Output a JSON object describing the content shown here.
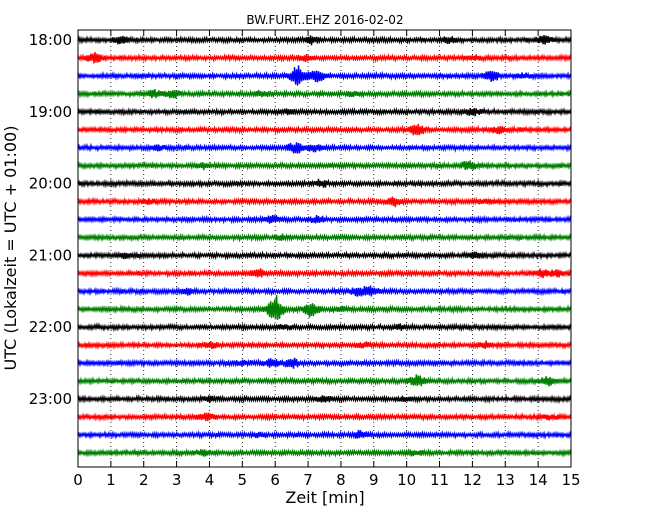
{
  "chart_data": {
    "type": "line",
    "title": "BW.FURT..EHZ 2016-02-02",
    "xlabel": "Zeit  [min]",
    "ylabel": "UTC (Lokalzeit = UTC + 01:00)",
    "xlim": [
      0,
      15
    ],
    "x_ticks": [
      "0",
      "1",
      "2",
      "3",
      "4",
      "5",
      "6",
      "7",
      "8",
      "9",
      "10",
      "11",
      "12",
      "13",
      "14",
      "15"
    ],
    "y_tick_labels": [
      "18:00",
      "19:00",
      "20:00",
      "21:00",
      "22:00",
      "23:00"
    ],
    "minutes_per_trace": 15,
    "vertical_grid": "dotted at every minute",
    "trace_colors": [
      "#000000",
      "#ff0000",
      "#0000ff",
      "#008000"
    ],
    "traces": [
      {
        "start": "18:00",
        "events": [
          {
            "min": 1.3,
            "amp": 0.5
          },
          {
            "min": 7.1,
            "amp": 0.6
          },
          {
            "min": 11.3,
            "amp": 0.45
          },
          {
            "min": 14.2,
            "amp": 0.6
          }
        ]
      },
      {
        "start": "18:15",
        "events": [
          {
            "min": 0.5,
            "amp": 0.8
          },
          {
            "min": 6.9,
            "amp": 0.35
          },
          {
            "min": 12.0,
            "amp": 0.3
          }
        ]
      },
      {
        "start": "18:30",
        "events": [
          {
            "min": 6.7,
            "amp": 1.6
          },
          {
            "min": 7.3,
            "amp": 1.0
          },
          {
            "min": 12.6,
            "amp": 0.8
          },
          {
            "min": 13.5,
            "amp": 0.3
          }
        ]
      },
      {
        "start": "18:45",
        "events": [
          {
            "min": 2.3,
            "amp": 0.5
          },
          {
            "min": 2.9,
            "amp": 0.6
          },
          {
            "min": 5.6,
            "amp": 0.4
          },
          {
            "min": 8.4,
            "amp": 0.3
          }
        ]
      },
      {
        "start": "19:00",
        "events": [
          {
            "min": 6.4,
            "amp": 0.35
          },
          {
            "min": 12.0,
            "amp": 0.5
          }
        ]
      },
      {
        "start": "19:15",
        "events": [
          {
            "min": 10.3,
            "amp": 0.9
          },
          {
            "min": 12.8,
            "amp": 0.5
          }
        ]
      },
      {
        "start": "19:30",
        "events": [
          {
            "min": 2.4,
            "amp": 0.4
          },
          {
            "min": 6.6,
            "amp": 0.8
          },
          {
            "min": 7.2,
            "amp": 0.5
          }
        ]
      },
      {
        "start": "19:45",
        "events": [
          {
            "min": 3.8,
            "amp": 0.4
          },
          {
            "min": 11.9,
            "amp": 0.6
          }
        ]
      },
      {
        "start": "20:00",
        "events": [
          {
            "min": 7.4,
            "amp": 0.5
          }
        ]
      },
      {
        "start": "20:15",
        "events": [
          {
            "min": 2.2,
            "amp": 0.3
          },
          {
            "min": 9.6,
            "amp": 0.7
          },
          {
            "min": 12.4,
            "amp": 0.3
          }
        ]
      },
      {
        "start": "20:30",
        "events": [
          {
            "min": 5.9,
            "amp": 0.5
          },
          {
            "min": 7.3,
            "amp": 0.4
          }
        ]
      },
      {
        "start": "20:45",
        "events": [
          {
            "min": 6.2,
            "amp": 0.3
          }
        ]
      },
      {
        "start": "21:00",
        "events": [
          {
            "min": 1.4,
            "amp": 0.35
          },
          {
            "min": 12.1,
            "amp": 0.4
          }
        ]
      },
      {
        "start": "21:15",
        "events": [
          {
            "min": 5.5,
            "amp": 0.7
          },
          {
            "min": 14.1,
            "amp": 0.7
          },
          {
            "min": 14.6,
            "amp": 0.4
          }
        ]
      },
      {
        "start": "21:30",
        "events": [
          {
            "min": 3.3,
            "amp": 0.4
          },
          {
            "min": 8.5,
            "amp": 0.6
          },
          {
            "min": 8.9,
            "amp": 0.7
          }
        ]
      },
      {
        "start": "21:45",
        "events": [
          {
            "min": 6.0,
            "amp": 2.3
          },
          {
            "min": 7.1,
            "amp": 1.2
          },
          {
            "min": 8.0,
            "amp": 0.4
          }
        ]
      },
      {
        "start": "22:00",
        "events": [
          {
            "min": 6.3,
            "amp": 0.3
          },
          {
            "min": 9.8,
            "amp": 0.3
          }
        ]
      },
      {
        "start": "22:15",
        "events": [
          {
            "min": 4.0,
            "amp": 0.5
          },
          {
            "min": 12.4,
            "amp": 0.45
          },
          {
            "min": 8.7,
            "amp": 0.3
          }
        ]
      },
      {
        "start": "22:30",
        "events": [
          {
            "min": 5.0,
            "amp": 0.35
          },
          {
            "min": 5.9,
            "amp": 0.6
          },
          {
            "min": 6.5,
            "amp": 0.7
          }
        ]
      },
      {
        "start": "22:45",
        "events": [
          {
            "min": 10.3,
            "amp": 1.0
          },
          {
            "min": 14.3,
            "amp": 0.6
          }
        ]
      },
      {
        "start": "23:00",
        "events": [
          {
            "min": 4.0,
            "amp": 0.4
          },
          {
            "min": 7.5,
            "amp": 0.4
          },
          {
            "min": 10.0,
            "amp": 0.35
          }
        ]
      },
      {
        "start": "23:15",
        "events": [
          {
            "min": 3.9,
            "amp": 0.6
          },
          {
            "min": 14.4,
            "amp": 0.3
          }
        ]
      },
      {
        "start": "23:30",
        "events": [
          {
            "min": 8.6,
            "amp": 0.6
          },
          {
            "min": 5.5,
            "amp": 0.3
          }
        ]
      },
      {
        "start": "23:45",
        "events": [
          {
            "min": 3.8,
            "amp": 0.35
          },
          {
            "min": 10.2,
            "amp": 0.3
          }
        ]
      }
    ]
  }
}
